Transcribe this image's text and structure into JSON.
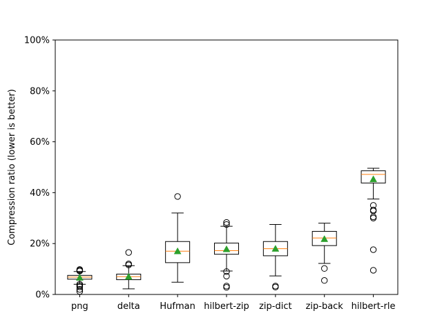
{
  "chart_data": {
    "type": "box",
    "ylabel": "Compression ratio (lower is better)",
    "ylim": [
      0,
      100
    ],
    "yticks": [
      "0%",
      "20%",
      "40%",
      "60%",
      "80%",
      "100%"
    ],
    "ytick_values": [
      0,
      20,
      40,
      60,
      80,
      100
    ],
    "categories": [
      "png",
      "delta",
      "Hufman",
      "hilbert-zip",
      "zip-dict",
      "zip-back",
      "hilbert-rle"
    ],
    "boxes": [
      {
        "whisker_low": 4.0,
        "q1": 6.0,
        "median": 6.8,
        "q3": 7.5,
        "whisker_high": 9.0,
        "mean": 6.6,
        "outliers": [
          1.2,
          2.0,
          3.0,
          3.5,
          4.0,
          9.2,
          9.5,
          9.8
        ]
      },
      {
        "whisker_low": 2.2,
        "q1": 5.8,
        "median": 7.0,
        "q3": 8.0,
        "whisker_high": 11.3,
        "mean": 7.0,
        "outliers": [
          11.6,
          12.0,
          16.5
        ]
      },
      {
        "whisker_low": 4.8,
        "q1": 12.5,
        "median": 17.0,
        "q3": 20.8,
        "whisker_high": 32.0,
        "mean": 17.0,
        "outliers": [
          38.5
        ]
      },
      {
        "whisker_low": 9.2,
        "q1": 15.8,
        "median": 17.2,
        "q3": 20.2,
        "whisker_high": 26.8,
        "mean": 17.8,
        "outliers": [
          2.8,
          3.3,
          7.2,
          9.0,
          27.5,
          28.3
        ]
      },
      {
        "whisker_low": 7.3,
        "q1": 15.2,
        "median": 18.0,
        "q3": 20.8,
        "whisker_high": 27.5,
        "mean": 18.0,
        "outliers": [
          2.9,
          3.3
        ]
      },
      {
        "whisker_low": 12.2,
        "q1": 19.2,
        "median": 22.2,
        "q3": 24.8,
        "whisker_high": 28.0,
        "mean": 21.8,
        "outliers": [
          5.5,
          10.2
        ]
      },
      {
        "whisker_low": 37.5,
        "q1": 43.8,
        "median": 47.2,
        "q3": 48.6,
        "whisker_high": 49.6,
        "mean": 45.3,
        "outliers": [
          9.5,
          17.6,
          30.0,
          30.5,
          32.8,
          33.2,
          35.0
        ]
      }
    ],
    "colors": {
      "median": "#ff7f0e",
      "mean": "#2ca02c",
      "box": "#000000"
    },
    "grid": false
  }
}
